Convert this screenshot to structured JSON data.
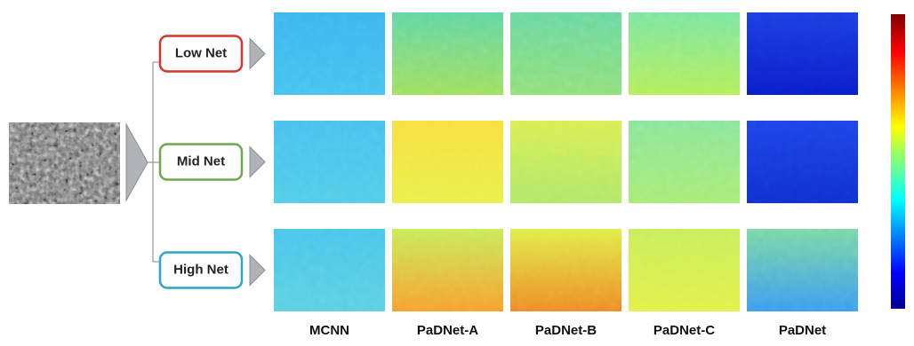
{
  "rows": [
    {
      "label": "Low Net"
    },
    {
      "label": "Mid Net"
    },
    {
      "label": "High Net"
    }
  ],
  "columns": [
    "MCNN",
    "PaDNet-A",
    "PaDNet-B",
    "PaDNet-C",
    "PaDNet"
  ]
}
